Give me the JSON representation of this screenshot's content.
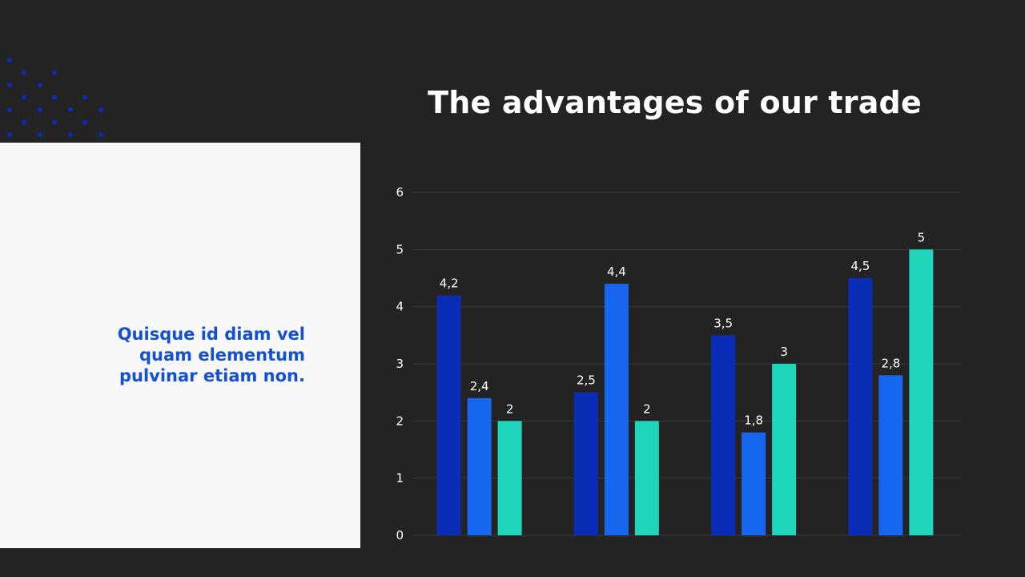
{
  "slide": {
    "title": "The advantages of our trade",
    "quote_lines": [
      "Quisque id diam vel",
      "quam elementum",
      "pulvinar etiam non."
    ]
  },
  "colors": {
    "background": "#232323",
    "panel": "#f8f8f8",
    "accent_text": "#1450d2",
    "dots": "#0a2db8",
    "gridline": "#3a3a3a",
    "tick_label": "#ffffff"
  },
  "chart_data": {
    "type": "bar",
    "categories": [
      "",
      "",
      "",
      ""
    ],
    "series": [
      {
        "values": [
          4.2,
          2.5,
          3.5,
          4.5
        ],
        "labels": [
          "4,2",
          "2,5",
          "3,5",
          "4,5"
        ],
        "color": "#0a2db8"
      },
      {
        "values": [
          2.4,
          4.4,
          1.8,
          2.8
        ],
        "labels": [
          "2,4",
          "4,4",
          "1,8",
          "2,8"
        ],
        "color": "#1766f0"
      },
      {
        "values": [
          2,
          2,
          3,
          5
        ],
        "labels": [
          "2",
          "2",
          "3",
          "5"
        ],
        "color": "#1fd6bb"
      }
    ],
    "ylim": [
      0,
      6
    ],
    "yticks": [
      "0",
      "1",
      "2",
      "3",
      "4",
      "5",
      "6"
    ],
    "grid": true,
    "title": "",
    "xlabel": "",
    "ylabel": ""
  }
}
